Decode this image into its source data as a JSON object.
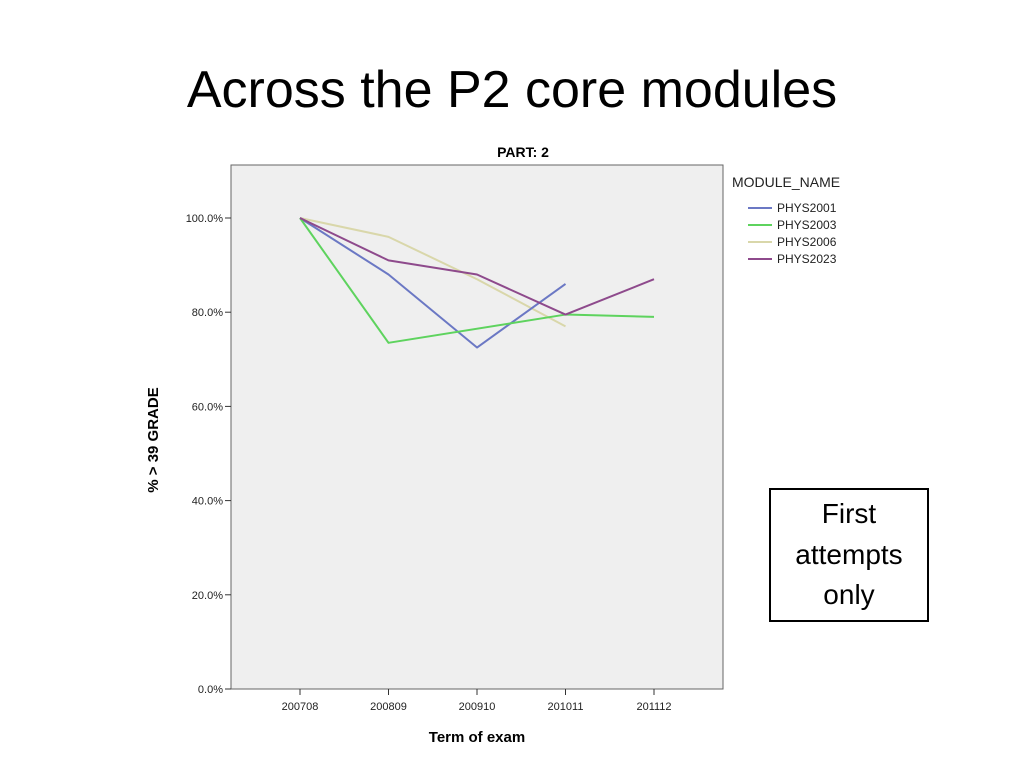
{
  "slide": {
    "title": "Across the P2 core modules",
    "note": "First\nattempts\nonly"
  },
  "chart_data": {
    "type": "line",
    "title": "PART: 2",
    "xlabel": "Term of exam",
    "ylabel": "% > 39 GRADE",
    "categories": [
      "200708",
      "200809",
      "200910",
      "201011",
      "201112"
    ],
    "ylim": [
      0,
      100
    ],
    "yticks": [
      "0.0%",
      "20.0%",
      "40.0%",
      "60.0%",
      "80.0%",
      "100.0%"
    ],
    "legend_title": "MODULE_NAME",
    "legend_position": "right",
    "grid": false,
    "series": [
      {
        "name": "PHYS2001",
        "color": "#6b78c4",
        "values": [
          100,
          88,
          72.5,
          86,
          null
        ]
      },
      {
        "name": "PHYS2003",
        "color": "#5ed35e",
        "values": [
          100,
          73.5,
          null,
          79.5,
          79
        ]
      },
      {
        "name": "PHYS2006",
        "color": "#d9d7aa",
        "values": [
          100,
          96,
          87,
          77,
          null
        ]
      },
      {
        "name": "PHYS2023",
        "color": "#8e4a8c",
        "values": [
          100,
          91,
          88,
          79.5,
          87
        ]
      }
    ]
  }
}
